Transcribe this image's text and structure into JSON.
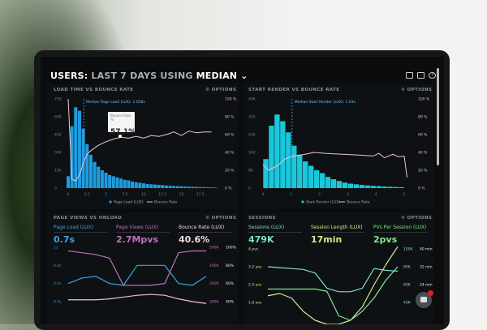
{
  "header": {
    "title_prefix": "USERS:",
    "title_range": "LAST 7 DAYS",
    "title_using": "USING",
    "title_stat": "MEDIAN",
    "icons": [
      "monitor-icon",
      "share-icon",
      "help-icon"
    ]
  },
  "panels": {
    "load_time": {
      "title": "LOAD TIME VS BOUNCE RATE",
      "options": "⚙ OPTIONS",
      "median_label": "Median Page Load (LUX): 2.058s",
      "tooltip": {
        "label": "Bounce Rate",
        "unit": "%",
        "value": "57.1%"
      },
      "legend": [
        "Page Load (LUX)",
        "Bounce Rate"
      ]
    },
    "start_render": {
      "title": "START RENDER VS BOUNCE RATE",
      "options": "⚙ OPTIONS",
      "median_label": "Median Start Render (LUX): 1.03s",
      "legend": [
        "Start Render (LUX)",
        "Bounce Rate"
      ]
    },
    "page_views": {
      "title": "PAGE VIEWS VS ONLOAD",
      "options": "⚙ OPTIONS",
      "stats": [
        {
          "label": "Page Load (LUX)",
          "value": "0.7s",
          "color": "#3ba4e0"
        },
        {
          "label": "Page Views (LUX)",
          "value": "2.7Mpvs",
          "color": "#c070c0"
        },
        {
          "label": "Bounce Rate (LUX)",
          "value": "40.6%",
          "color": "#f6d8e4"
        }
      ]
    },
    "sessions": {
      "title": "SESSIONS",
      "options": "⚙ OPTIONS",
      "stats": [
        {
          "label": "Sessions (LUX)",
          "value": "479K",
          "color": "#7ee0c8"
        },
        {
          "label": "Session Length (LUX)",
          "value": "17min",
          "color": "#d8e890"
        },
        {
          "label": "PVs Per Session (LUX)",
          "value": "2pvs",
          "color": "#80e890"
        }
      ]
    }
  },
  "chart_data": [
    {
      "type": "bar",
      "title": "LOAD TIME VS BOUNCE RATE",
      "x_ticks": [
        "0",
        "2.5",
        "5",
        "7.5",
        "10",
        "12.5",
        "15",
        "17.5"
      ],
      "y_ticks": [
        "0",
        "15K",
        "30K",
        "45K",
        "60K",
        "75K"
      ],
      "y2_ticks": [
        "0 %",
        "20 %",
        "40 %",
        "60 %",
        "80 %",
        "100 %"
      ],
      "ylim": [
        0,
        75000
      ],
      "y2lim": [
        0,
        100
      ],
      "median": 2.058,
      "color": "#1e9ce0",
      "bars": {
        "x_start": 0,
        "width": 0.5,
        "values": [
          10000,
          52000,
          68000,
          65000,
          50000,
          37000,
          28000,
          22000,
          18000,
          15000,
          13000,
          11000,
          10000,
          9000,
          8000,
          7000,
          6500,
          5500,
          5000,
          4500,
          4000,
          3500,
          3200,
          3000,
          2700,
          2500,
          2200,
          2000,
          1800,
          1600,
          1500,
          1300,
          1200,
          1100,
          1000,
          900,
          800,
          700,
          600,
          500
        ]
      },
      "line": {
        "name": "Bounce Rate",
        "x": [
          0,
          0.5,
          1,
          1.5,
          2,
          2.5,
          3,
          4,
          5,
          6,
          7,
          8,
          9,
          10,
          11,
          12,
          13,
          14,
          15,
          16,
          17,
          18,
          19
        ],
        "y": [
          100,
          10,
          8,
          15,
          28,
          38,
          42,
          48,
          52,
          55,
          57,
          56,
          58,
          56,
          59,
          58,
          60,
          63,
          59,
          64,
          62,
          63,
          63
        ]
      }
    },
    {
      "type": "bar",
      "title": "START RENDER VS BOUNCE RATE",
      "x_ticks": [
        "0",
        "1",
        "2",
        "3",
        "4",
        "5"
      ],
      "y_ticks": [
        "0",
        "8K",
        "16K",
        "24K",
        "32K",
        "40K"
      ],
      "y2_ticks": [
        "0 %",
        "20 %",
        "40 %",
        "60 %",
        "80 %",
        "100 %"
      ],
      "ylim": [
        0,
        40000
      ],
      "y2lim": [
        0,
        100
      ],
      "median": 1.03,
      "color": "#19c8dc",
      "bars": {
        "x_start": 0.1,
        "width": 0.2,
        "values": [
          13000,
          28000,
          33000,
          30000,
          25000,
          19000,
          15000,
          12000,
          10000,
          8000,
          6700,
          5000,
          4000,
          3200,
          2500,
          2000,
          1700,
          1400,
          1200,
          1000,
          900,
          700,
          600,
          500,
          400
        ]
      },
      "line": {
        "name": "Bounce Rate",
        "x": [
          0,
          0.2,
          0.5,
          0.8,
          1.1,
          1.5,
          1.8,
          2.2,
          2.8,
          3.4,
          3.9,
          4.1,
          4.3,
          4.6,
          4.8,
          5,
          5.1
        ],
        "y": [
          26,
          20,
          25,
          33,
          36,
          38,
          40,
          39,
          38,
          37,
          36,
          39,
          34,
          38,
          35,
          36,
          12
        ]
      }
    },
    {
      "type": "line",
      "title": "PAGE VIEWS VS ONLOAD",
      "y_ticks": [
        "0.4s",
        "0.6s",
        "0.8s",
        "1s"
      ],
      "y2_ticks": [
        "200K",
        "300K",
        "400K",
        "500K"
      ],
      "y3_ticks": [
        "40%",
        "60%",
        "80%",
        "100%"
      ],
      "series": [
        {
          "name": "Page Load (LUX)",
          "color": "#3ba4e0",
          "values": [
            0.6,
            0.66,
            0.68,
            0.6,
            0.58,
            0.8,
            0.8,
            0.8,
            0.6,
            0.58,
            0.68
          ]
        },
        {
          "name": "Page Views (LUX)",
          "color": "#c070c0",
          "values": [
            480,
            470,
            460,
            440,
            290,
            290,
            290,
            300,
            470,
            480,
            480
          ]
        },
        {
          "name": "Bounce Rate (LUX)",
          "color": "#f0c0d0",
          "values": [
            42,
            42,
            42,
            43,
            45,
            47,
            48,
            47,
            43,
            40,
            38
          ]
        }
      ]
    },
    {
      "type": "line",
      "title": "SESSIONS",
      "y_ticks": [
        "1.6 pvs",
        "2.4 pvs",
        "3.2 pvs",
        "4 pvs"
      ],
      "y2_ticks": [
        "40K",
        "60K",
        "80K",
        "100K"
      ],
      "y3_ticks": [
        "24 min",
        "32 min",
        "40 min"
      ],
      "series": [
        {
          "name": "Sessions (LUX)",
          "color": "#7ee0c8",
          "values": [
            80,
            79,
            78,
            77,
            73,
            56,
            52,
            52,
            56,
            78,
            76,
            75
          ]
        },
        {
          "name": "Session Length (LUX)",
          "color": "#d8e890",
          "values": [
            1.9,
            2.0,
            1.8,
            1.2,
            0.8,
            0.6,
            0.6,
            0.8,
            1.4,
            2.4,
            3.3,
            4.1
          ]
        },
        {
          "name": "PVs Per Session (LUX)",
          "color": "#80e890",
          "values": [
            2.2,
            2.2,
            2.2,
            2.2,
            2.2,
            2.1,
            1.0,
            0.8,
            1.2,
            1.8,
            2.6,
            3.2
          ]
        }
      ]
    }
  ]
}
